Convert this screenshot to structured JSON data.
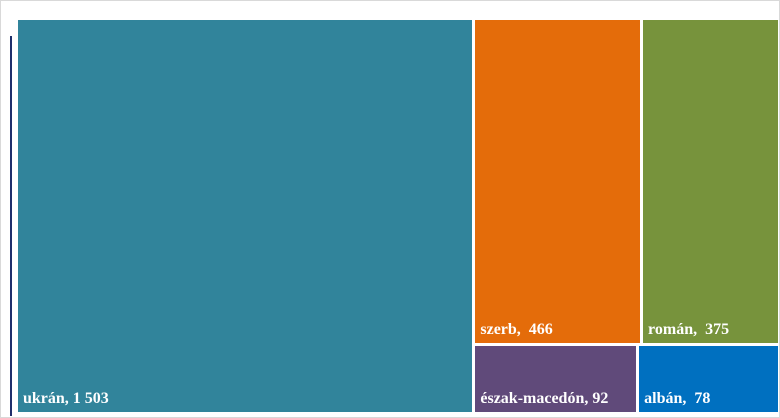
{
  "chart_data": {
    "type": "treemap",
    "values": [
      1503,
      466,
      375,
      92,
      78
    ],
    "value_labels": [
      "ukrán, 1 503",
      "szerb,  466",
      "román,  375",
      "észak-macedón, 92",
      "albán,  78"
    ],
    "colors": [
      "#31849b",
      "#e46c0a",
      "#77933c",
      "#604a7a",
      "#0070c0"
    ]
  }
}
